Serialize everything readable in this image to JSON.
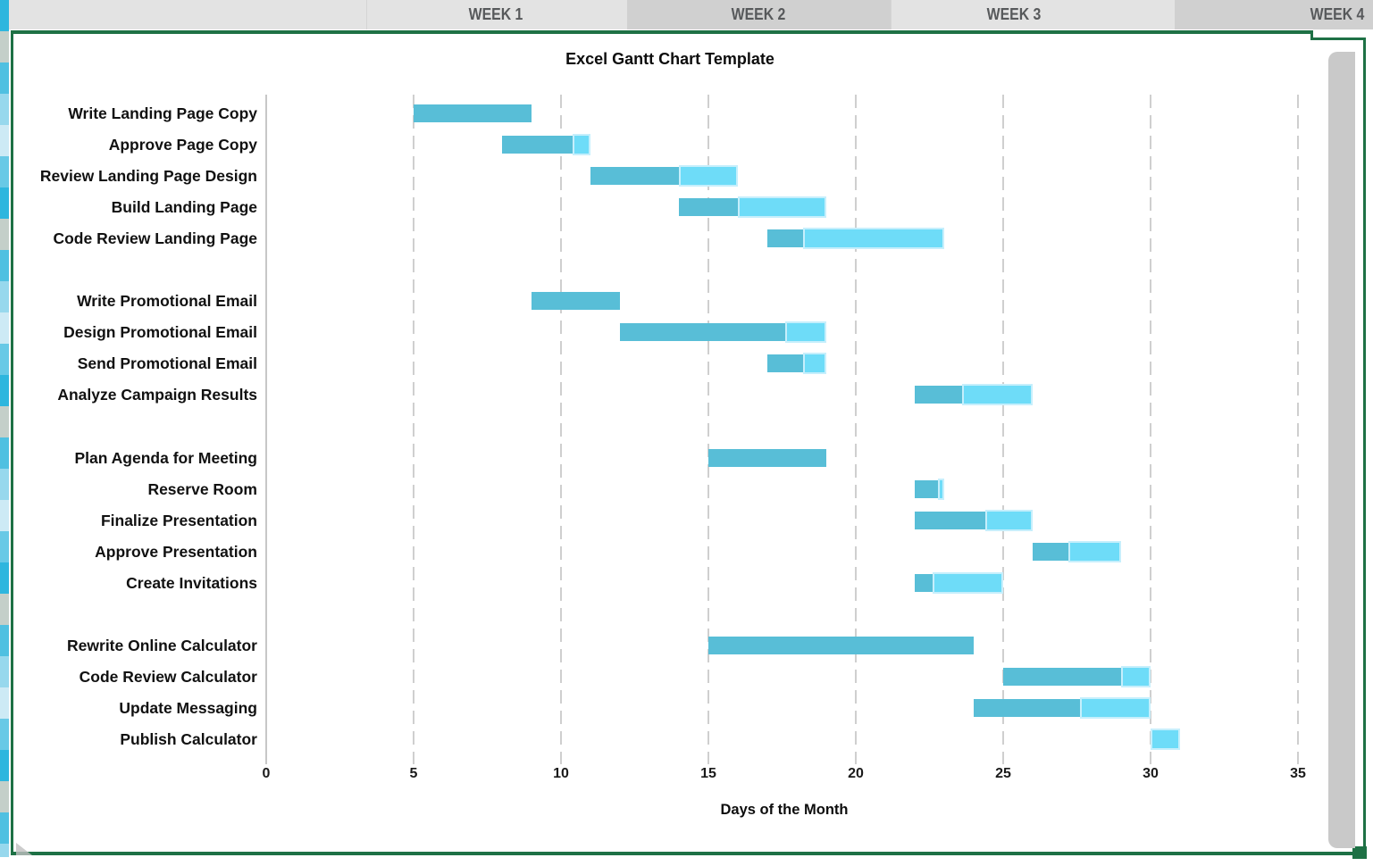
{
  "header": {
    "weeks": [
      {
        "label": "WEEK 1"
      },
      {
        "label": "WEEK 2"
      },
      {
        "label": "WEEK 3"
      },
      {
        "label": "WEEK 4"
      }
    ]
  },
  "chart_data": {
    "type": "bar",
    "variant": "gantt",
    "title": "Excel Gantt Chart Template",
    "xlabel": "Days of the Month",
    "xticks": [
      0,
      5,
      10,
      15,
      20,
      25,
      30,
      35
    ],
    "xlim": [
      0,
      35
    ],
    "grid": "vertical-dashed",
    "legend": "none",
    "bar_meaning": {
      "dark_segment": "completed portion of task",
      "light_segment": "remaining portion of task"
    },
    "tasks": [
      {
        "name": "Write Landing Page Copy",
        "row": 0,
        "start": 5,
        "end": 9,
        "percent_complete": 100
      },
      {
        "name": "Approve Page Copy",
        "row": 1,
        "start": 8,
        "end": 11,
        "percent_complete": 80
      },
      {
        "name": "Review Landing Page Design",
        "row": 2,
        "start": 11,
        "end": 16,
        "percent_complete": 60
      },
      {
        "name": "Build Landing Page",
        "row": 3,
        "start": 14,
        "end": 19,
        "percent_complete": 40
      },
      {
        "name": "Code Review Landing Page",
        "row": 4,
        "start": 17,
        "end": 23,
        "percent_complete": 20
      },
      {
        "name": "Write Promotional Email",
        "row": 6,
        "start": 9,
        "end": 12,
        "percent_complete": 100
      },
      {
        "name": "Design Promotional Email",
        "row": 7,
        "start": 12,
        "end": 19,
        "percent_complete": 80
      },
      {
        "name": "Send Promotional Email",
        "row": 8,
        "start": 17,
        "end": 19,
        "percent_complete": 60
      },
      {
        "name": "Analyze Campaign Results",
        "row": 9,
        "start": 22,
        "end": 26,
        "percent_complete": 40
      },
      {
        "name": "Plan Agenda for Meeting",
        "row": 11,
        "start": 15,
        "end": 19,
        "percent_complete": 100
      },
      {
        "name": "Reserve Room",
        "row": 12,
        "start": 22,
        "end": 23,
        "percent_complete": 80
      },
      {
        "name": "Finalize Presentation",
        "row": 13,
        "start": 22,
        "end": 26,
        "percent_complete": 60
      },
      {
        "name": "Approve Presentation",
        "row": 14,
        "start": 26,
        "end": 29,
        "percent_complete": 40
      },
      {
        "name": "Create Invitations",
        "row": 15,
        "start": 22,
        "end": 25,
        "percent_complete": 20
      },
      {
        "name": "Rewrite Online Calculator",
        "row": 17,
        "start": 15,
        "end": 24,
        "percent_complete": 100
      },
      {
        "name": "Code Review Calculator",
        "row": 18,
        "start": 25,
        "end": 30,
        "percent_complete": 80
      },
      {
        "name": "Update Messaging",
        "row": 19,
        "start": 24,
        "end": 30,
        "percent_complete": 60
      },
      {
        "name": "Publish Calculator",
        "row": 20,
        "start": 30,
        "end": 31,
        "percent_complete": 0
      }
    ]
  },
  "theme": {
    "bar_dark": "#58bed7",
    "bar_light": "#6edcf8",
    "bar_light_border": "#c6effc",
    "frame_green": "#1e7145",
    "header_light": "#e3e3e3",
    "header_dark": "#d0d0d0",
    "header_text": "#57595b",
    "gridline": "#cfcfcf",
    "scrollbar": "#c9c9c9",
    "strip_colors": [
      "#2eb6de",
      "#c4cfc9",
      "#4fc0e1",
      "#97d8ed",
      "#cdeaf5",
      "#68c9e6"
    ]
  }
}
